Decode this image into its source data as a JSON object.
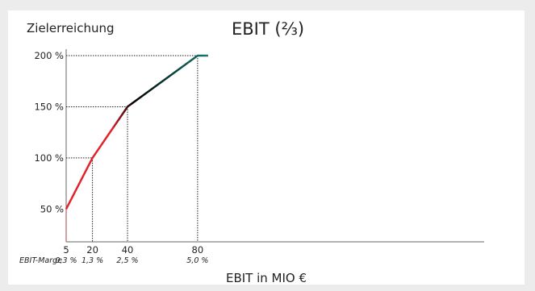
{
  "chart_data": {
    "type": "line",
    "title": "EBIT (⅔)",
    "ylabel": "Zielerreichung",
    "xlabel": "EBIT in MIO €",
    "x": [
      5,
      20,
      40,
      80,
      86
    ],
    "y": [
      50,
      100,
      150,
      200,
      200
    ],
    "xlim": [
      0,
      88
    ],
    "ylim": [
      40,
      200
    ],
    "y_ticks": [
      {
        "value": 50,
        "label": "50 %"
      },
      {
        "value": 100,
        "label": "100 %"
      },
      {
        "value": 150,
        "label": "150 %"
      },
      {
        "value": 200,
        "label": "200 %"
      }
    ],
    "x_ticks": [
      {
        "value": 5,
        "label": "5",
        "sub": "0,3 %"
      },
      {
        "value": 20,
        "label": "20",
        "sub": "1,3 %"
      },
      {
        "value": 40,
        "label": "40",
        "sub": "2,5 %"
      },
      {
        "value": 80,
        "label": "80",
        "sub": "5,0 %"
      }
    ],
    "x_sub_caption": "EBIT-Marge",
    "grid": false,
    "colors": {
      "start": "#e0242a",
      "mid": "#3a0f1a",
      "middark": "#000000",
      "end": "#137a70",
      "axis": "#666666",
      "guide": "#222222",
      "guide_first": "#e0242a"
    }
  }
}
